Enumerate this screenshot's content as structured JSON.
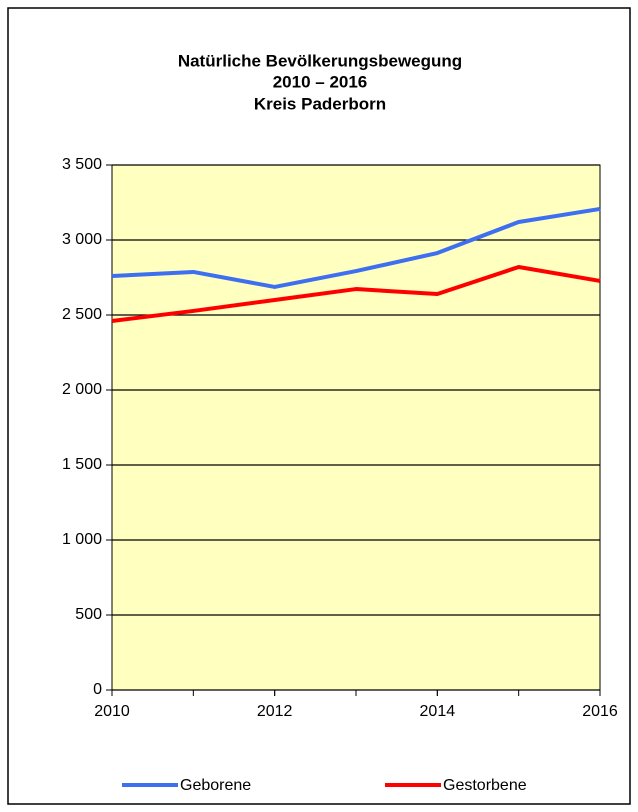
{
  "chart_data": {
    "type": "line",
    "title": [
      "Natürliche Bevölkerungsbewegung",
      "2010 – 2016",
      "Kreis Paderborn"
    ],
    "x": [
      2010,
      2011,
      2012,
      2013,
      2014,
      2015,
      2016
    ],
    "series": [
      {
        "name": "Geborene",
        "color": "#3d6ff0",
        "values": [
          2760,
          2787,
          2687,
          2793,
          2913,
          3120,
          3207
        ]
      },
      {
        "name": "Gestorbene",
        "color": "#ff0000",
        "values": [
          2460,
          2527,
          2600,
          2673,
          2640,
          2820,
          2727
        ]
      }
    ],
    "xlim": [
      2010,
      2016
    ],
    "xticks": [
      2010,
      2012,
      2014,
      2016
    ],
    "ylim": [
      0,
      3500
    ],
    "yticks": [
      0,
      500,
      {
        "value": 1000,
        "label": "1 000"
      },
      {
        "value": 1500,
        "label": "1 500"
      },
      {
        "value": 2000,
        "label": "2 000"
      },
      {
        "value": 2500,
        "label": "2 500"
      },
      {
        "value": 3000,
        "label": "3 000"
      },
      {
        "value": 3500,
        "label": "3 500"
      }
    ],
    "grid": true,
    "legend": "bottom",
    "background": "#ffffc0"
  }
}
